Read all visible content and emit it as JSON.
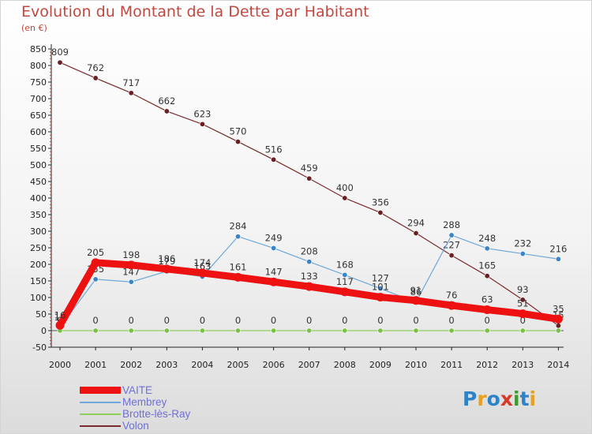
{
  "title": "Evolution du Montant de la Dette par Habitant",
  "subtitle": "(en €)",
  "logo": {
    "letters": [
      {
        "ch": "P",
        "color": "#2e82c8"
      },
      {
        "ch": "r",
        "color": "#e8a020"
      },
      {
        "ch": "o",
        "color": "#2e82c8"
      },
      {
        "ch": "x",
        "color": "#d83a2a"
      },
      {
        "ch": "i",
        "color": "#3c9a30"
      },
      {
        "ch": "t",
        "color": "#2e82c8"
      },
      {
        "ch": "i",
        "color": "#e8a020"
      }
    ]
  },
  "chart_data": {
    "type": "line",
    "title": "Evolution du Montant de la Dette par Habitant",
    "xlabel": "",
    "ylabel": "(en €)",
    "ylim": [
      -50,
      850
    ],
    "ytick_step": 50,
    "grid": false,
    "legend_position": "bottom-left",
    "x": [
      "2000",
      "2001",
      "2002",
      "2003",
      "2004",
      "2005",
      "2006",
      "2007",
      "2008",
      "2009",
      "2010",
      "2011",
      "2012",
      "2013",
      "2014"
    ],
    "series": [
      {
        "name": "Volon",
        "color": "#7a2a2e",
        "marker": "#6a1f22",
        "width": 1.2,
        "values": [
          809,
          762,
          717,
          662,
          623,
          570,
          516,
          459,
          400,
          356,
          294,
          227,
          165,
          93,
          15
        ],
        "labels": [
          "809",
          "762",
          "717",
          "662",
          "623",
          "570",
          "516",
          "459",
          "400",
          "356",
          "294",
          "227",
          "165",
          "93",
          "15"
        ]
      },
      {
        "name": "Membrey",
        "color": "#6fa8dc",
        "marker": "#3a84c8",
        "width": 1.2,
        "values": [
          10,
          155,
          147,
          179,
          163,
          284,
          249,
          208,
          168,
          127,
          86,
          288,
          248,
          232,
          216
        ],
        "labels": [
          "10",
          "155",
          "147",
          "179",
          "163",
          "284",
          "249",
          "208",
          "168",
          "127",
          "86",
          "288",
          "248",
          "232",
          "216"
        ]
      },
      {
        "name": "Brotte-lès-Ray",
        "color": "#8fcf5a",
        "marker": "#7cc04a",
        "width": 1.2,
        "values": [
          0,
          0,
          0,
          0,
          0,
          0,
          0,
          0,
          0,
          0,
          0,
          0,
          0,
          0,
          0
        ],
        "labels": [
          "0",
          "0",
          "0",
          "0",
          "0",
          "0",
          "0",
          "0",
          "0",
          "0",
          "0",
          "0",
          "0",
          "0",
          "0"
        ]
      },
      {
        "name": "VAITE",
        "color": "#ee1111",
        "marker": "#ee1111",
        "width": 9,
        "values": [
          16,
          205,
          198,
          186,
          174,
          161,
          147,
          133,
          117,
          101,
          91,
          76,
          63,
          51,
          35
        ],
        "labels": [
          "16",
          "205",
          "198",
          "186",
          "174",
          "161",
          "147",
          "133",
          "117",
          "101",
          "91",
          "76",
          "63",
          "51",
          "35"
        ]
      }
    ],
    "legend_order": [
      "VAITE",
      "Membrey",
      "Brotte-lès-Ray",
      "Volon"
    ]
  }
}
